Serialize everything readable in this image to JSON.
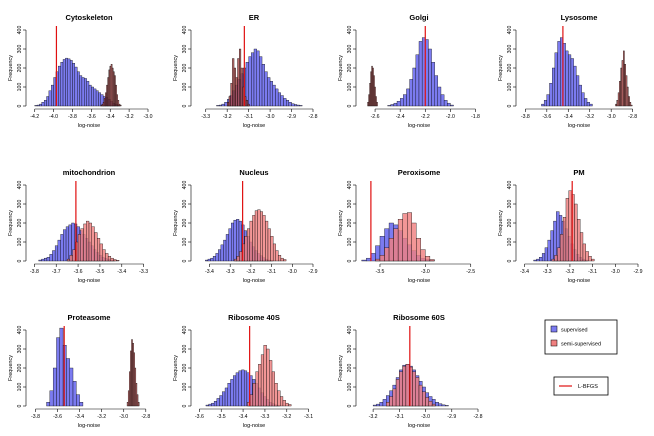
{
  "figure": {
    "x_axis_label": "log-noise",
    "y_axis_label": "Frequency"
  },
  "legend": {
    "items": [
      {
        "label": "supervised",
        "color": "#7b7bf0"
      },
      {
        "label": "semi-supervised",
        "color": "#f08080"
      }
    ],
    "line_label": "L-BFGS",
    "line_color": "#e01010"
  },
  "colors": {
    "supervised": "#7b7bf0",
    "semi_supervised": "#f08080",
    "overlap": "#b03a6a",
    "narrow_semi": "#a84848",
    "reference_line": "#e01010"
  },
  "chart_data": [
    {
      "type": "histogram",
      "title": "Cytoskeleton",
      "xlim": [
        -4.25,
        -3.0
      ],
      "xticks": [
        -4.2,
        -4.0,
        -3.8,
        -3.6,
        -3.4,
        -3.2,
        -3.0
      ],
      "ylim": [
        0,
        400
      ],
      "yticks": [
        0,
        100,
        200,
        300,
        400
      ],
      "ref_line": -3.97,
      "series": [
        {
          "name": "supervised",
          "start": -4.2,
          "bin_width": 0.025,
          "counts": [
            3,
            5,
            10,
            20,
            30,
            50,
            80,
            110,
            150,
            180,
            210,
            230,
            245,
            252,
            248,
            240,
            225,
            205,
            180,
            160,
            150,
            145,
            130,
            110,
            100,
            90,
            80,
            70,
            60,
            50,
            45,
            35,
            25,
            15,
            10,
            5
          ]
        },
        {
          "name": "semi-supervised",
          "start": -3.5,
          "bin_width": 0.012,
          "counts": [
            5,
            10,
            20,
            40,
            70,
            110,
            150,
            190,
            210,
            220,
            200,
            180,
            160,
            110,
            60,
            30,
            10,
            5
          ]
        }
      ]
    },
    {
      "type": "histogram",
      "title": "ER",
      "xlim": [
        -3.35,
        -2.8
      ],
      "xticks": [
        -3.3,
        -3.2,
        -3.1,
        -3.0,
        -2.9,
        -2.8
      ],
      "ylim": [
        0,
        400
      ],
      "yticks": [
        0,
        100,
        200,
        300,
        400
      ],
      "ref_line": -3.12,
      "series": [
        {
          "name": "supervised",
          "start": -3.25,
          "bin_width": 0.0125,
          "counts": [
            3,
            5,
            10,
            20,
            35,
            55,
            80,
            110,
            140,
            170,
            200,
            230,
            260,
            280,
            300,
            290,
            260,
            220,
            180,
            150,
            130,
            110,
            90,
            70,
            55,
            40,
            30,
            20,
            12,
            8,
            5,
            3
          ]
        },
        {
          "name": "semi-supervised",
          "start": -3.2,
          "bin_width": 0.008,
          "counts": [
            20,
            50,
            120,
            250,
            200,
            150,
            250,
            300,
            200,
            100,
            50,
            30,
            10
          ]
        }
      ]
    },
    {
      "type": "histogram",
      "title": "Golgi",
      "xlim": [
        -2.72,
        -1.78
      ],
      "xticks": [
        -2.6,
        -2.4,
        -2.2,
        -2.0,
        -1.8
      ],
      "ylim": [
        0,
        400
      ],
      "yticks": [
        0,
        100,
        200,
        300,
        400
      ],
      "ref_line": -2.2,
      "series": [
        {
          "name": "supervised",
          "start": -2.5,
          "bin_width": 0.025,
          "counts": [
            3,
            8,
            15,
            25,
            40,
            60,
            90,
            140,
            200,
            270,
            340,
            360,
            350,
            300,
            230,
            160,
            100,
            60,
            30,
            15,
            5
          ]
        },
        {
          "name": "semi-supervised",
          "start": -2.66,
          "bin_width": 0.008,
          "counts": [
            20,
            60,
            120,
            180,
            210,
            200,
            160,
            100,
            50,
            20
          ]
        }
      ]
    },
    {
      "type": "histogram",
      "title": "Lysosome",
      "xlim": [
        -3.85,
        -2.75
      ],
      "xticks": [
        -3.8,
        -3.6,
        -3.4,
        -3.2,
        -3.0,
        -2.8
      ],
      "ylim": [
        0,
        400
      ],
      "yticks": [
        0,
        100,
        200,
        300,
        400
      ],
      "ref_line": -3.45,
      "series": [
        {
          "name": "supervised",
          "start": -3.65,
          "bin_width": 0.025,
          "counts": [
            10,
            30,
            60,
            120,
            200,
            280,
            340,
            360,
            330,
            290,
            270,
            250,
            210,
            160,
            110,
            70,
            40,
            20,
            10
          ]
        },
        {
          "name": "semi-supervised",
          "start": -2.96,
          "bin_width": 0.012,
          "counts": [
            10,
            30,
            70,
            130,
            200,
            240,
            290,
            220,
            160,
            100,
            50,
            20,
            5
          ]
        }
      ]
    },
    {
      "type": "histogram",
      "title": "mitochondrion",
      "xlim": [
        -3.82,
        -3.28
      ],
      "xticks": [
        -3.8,
        -3.7,
        -3.6,
        -3.5,
        -3.4,
        -3.3
      ],
      "ylim": [
        0,
        400
      ],
      "yticks": [
        0,
        100,
        200,
        300,
        400
      ],
      "ref_line": -3.61,
      "series": [
        {
          "name": "supervised",
          "start": -3.78,
          "bin_width": 0.0125,
          "counts": [
            5,
            10,
            15,
            20,
            35,
            55,
            80,
            110,
            140,
            165,
            180,
            190,
            200,
            195,
            180,
            160,
            140,
            120,
            100,
            80,
            60,
            45,
            30,
            20,
            15,
            10,
            5,
            3
          ]
        },
        {
          "name": "semi-supervised",
          "start": -3.65,
          "bin_width": 0.0125,
          "counts": [
            10,
            30,
            60,
            100,
            140,
            170,
            195,
            210,
            200,
            180,
            150,
            120,
            90,
            60,
            40,
            25,
            15,
            8,
            4
          ]
        }
      ]
    },
    {
      "type": "histogram",
      "title": "Nucleus",
      "xlim": [
        -3.47,
        -2.9
      ],
      "xticks": [
        -3.4,
        -3.3,
        -3.2,
        -3.1,
        -3.0,
        -2.9
      ],
      "ylim": [
        0,
        400
      ],
      "yticks": [
        0,
        100,
        200,
        300,
        400
      ],
      "ref_line": -3.24,
      "series": [
        {
          "name": "supervised",
          "start": -3.42,
          "bin_width": 0.0125,
          "counts": [
            5,
            10,
            15,
            25,
            40,
            60,
            85,
            110,
            140,
            170,
            200,
            215,
            220,
            210,
            190,
            160,
            130,
            100,
            75,
            55,
            40,
            28,
            18,
            10,
            5,
            3
          ]
        },
        {
          "name": "semi-supervised",
          "start": -3.28,
          "bin_width": 0.0125,
          "counts": [
            10,
            25,
            50,
            90,
            130,
            170,
            210,
            240,
            265,
            270,
            260,
            240,
            210,
            170,
            130,
            90,
            55,
            30,
            15,
            8
          ]
        }
      ]
    },
    {
      "type": "histogram",
      "title": "Peroxisome",
      "xlim": [
        -3.72,
        -2.42
      ],
      "xticks": [
        -3.5,
        -3.0,
        -2.5
      ],
      "ylim": [
        0,
        400
      ],
      "yticks": [
        0,
        100,
        200,
        300,
        400
      ],
      "ref_line": -3.6,
      "series": [
        {
          "name": "supervised",
          "start": -3.7,
          "bin_width": 0.05,
          "counts": [
            5,
            15,
            40,
            80,
            130,
            170,
            200,
            190,
            160,
            120,
            85,
            55,
            30,
            15,
            8,
            4
          ]
        },
        {
          "name": "semi-supervised",
          "start": -3.55,
          "bin_width": 0.05,
          "counts": [
            10,
            30,
            70,
            120,
            170,
            220,
            250,
            255,
            200,
            120,
            60,
            25,
            8
          ]
        }
      ]
    },
    {
      "type": "histogram",
      "title": "PM",
      "xlim": [
        -3.42,
        -2.9
      ],
      "xticks": [
        -3.4,
        -3.3,
        -3.2,
        -3.1,
        -3.0,
        -2.9
      ],
      "ylim": [
        0,
        400
      ],
      "yticks": [
        0,
        100,
        200,
        300,
        400
      ],
      "ref_line": -3.19,
      "series": [
        {
          "name": "supervised",
          "start": -3.36,
          "bin_width": 0.0125,
          "counts": [
            5,
            10,
            20,
            40,
            70,
            110,
            160,
            210,
            260,
            240,
            210,
            170,
            130,
            90,
            60,
            35,
            20,
            10,
            5
          ]
        },
        {
          "name": "semi-supervised",
          "start": -3.28,
          "bin_width": 0.0125,
          "counts": [
            10,
            30,
            70,
            140,
            230,
            330,
            370,
            350,
            300,
            220,
            150,
            90,
            50,
            25,
            10
          ]
        }
      ]
    },
    {
      "type": "histogram",
      "title": "Proteasome",
      "xlim": [
        -3.85,
        -2.78
      ],
      "xticks": [
        -3.8,
        -3.6,
        -3.4,
        -3.2,
        -3.0,
        -2.8
      ],
      "ylim": [
        0,
        400
      ],
      "yticks": [
        0,
        100,
        200,
        300,
        400
      ],
      "ref_line": -3.54,
      "series": [
        {
          "name": "supervised",
          "start": -3.7,
          "bin_width": 0.03,
          "counts": [
            20,
            80,
            200,
            360,
            410,
            320,
            250,
            200,
            130,
            60,
            20
          ]
        },
        {
          "name": "semi-supervised",
          "start": -2.97,
          "bin_width": 0.01,
          "counts": [
            20,
            80,
            180,
            290,
            350,
            330,
            280,
            200,
            120,
            60,
            20
          ]
        }
      ]
    },
    {
      "type": "histogram",
      "title": "Ribosome 40S",
      "xlim": [
        -3.62,
        -3.08
      ],
      "xticks": [
        -3.6,
        -3.5,
        -3.4,
        -3.3,
        -3.2,
        -3.1
      ],
      "ylim": [
        0,
        400
      ],
      "yticks": [
        0,
        100,
        200,
        300,
        400
      ],
      "ref_line": -3.37,
      "series": [
        {
          "name": "supervised",
          "start": -3.57,
          "bin_width": 0.0125,
          "counts": [
            5,
            10,
            15,
            25,
            40,
            55,
            75,
            95,
            120,
            140,
            160,
            175,
            185,
            190,
            185,
            175,
            160,
            140,
            120,
            95,
            70,
            50,
            35,
            20,
            12,
            6,
            3
          ]
        },
        {
          "name": "semi-supervised",
          "start": -3.38,
          "bin_width": 0.0125,
          "counts": [
            20,
            60,
            120,
            180,
            220,
            270,
            320,
            300,
            240,
            180,
            120,
            80,
            50,
            30,
            15,
            8
          ]
        }
      ]
    },
    {
      "type": "histogram",
      "title": "Ribosome 60S",
      "xlim": [
        -3.25,
        -2.8
      ],
      "xticks": [
        -3.2,
        -3.1,
        -3.0,
        -2.9,
        -2.8
      ],
      "ylim": [
        0,
        400
      ],
      "yticks": [
        0,
        100,
        200,
        300,
        400
      ],
      "ref_line": -3.06,
      "series": [
        {
          "name": "supervised",
          "start": -3.2,
          "bin_width": 0.0125,
          "counts": [
            5,
            10,
            20,
            35,
            55,
            80,
            110,
            150,
            190,
            215,
            220,
            210,
            190,
            160,
            130,
            100,
            70,
            50,
            35,
            20,
            12,
            6,
            3
          ]
        },
        {
          "name": "semi-supervised",
          "start": -3.15,
          "bin_width": 0.0125,
          "counts": [
            20,
            50,
            90,
            140,
            180,
            210,
            220,
            205,
            180,
            150,
            110,
            75,
            45,
            25,
            10
          ]
        }
      ]
    }
  ]
}
